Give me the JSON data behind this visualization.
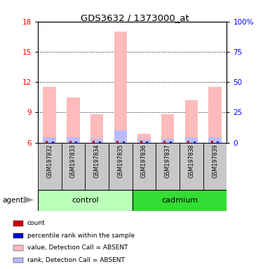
{
  "title": "GDS3632 / 1373000_at",
  "samples": [
    "GSM197832",
    "GSM197833",
    "GSM197834",
    "GSM197835",
    "GSM197836",
    "GSM197837",
    "GSM197838",
    "GSM197839"
  ],
  "group_labels": [
    "control",
    "cadmium"
  ],
  "group_colors": [
    "#bbffbb",
    "#33dd33"
  ],
  "value_absent": [
    11.5,
    10.5,
    8.8,
    17.0,
    6.9,
    8.8,
    10.2,
    11.5
  ],
  "rank_absent": [
    6.5,
    6.5,
    6.4,
    7.2,
    6.3,
    6.4,
    6.5,
    6.5
  ],
  "count_val": [
    6.1,
    6.1,
    6.1,
    6.1,
    6.1,
    6.1,
    6.1,
    6.1
  ],
  "percentile_val": [
    6.15,
    6.15,
    6.15,
    6.15,
    6.15,
    6.15,
    6.15,
    6.15
  ],
  "ylim_left": [
    6,
    18
  ],
  "ylim_right": [
    0,
    100
  ],
  "yticks_left": [
    6,
    9,
    12,
    15,
    18
  ],
  "yticks_right": [
    0,
    25,
    50,
    75,
    100
  ],
  "ytick_labels_right": [
    "0",
    "25",
    "50",
    "75",
    "100%"
  ],
  "colors": {
    "value_absent": "#ffbbbb",
    "rank_absent": "#bbbbff",
    "count": "#cc0000",
    "percentile": "#0000cc"
  },
  "legend_items": [
    {
      "label": "count",
      "color": "#cc0000"
    },
    {
      "label": "percentile rank within the sample",
      "color": "#0000cc"
    },
    {
      "label": "value, Detection Call = ABSENT",
      "color": "#ffbbbb"
    },
    {
      "label": "rank, Detection Call = ABSENT",
      "color": "#bbbbff"
    }
  ],
  "agent_label": "agent",
  "gray_bg": "#c8c8c8"
}
